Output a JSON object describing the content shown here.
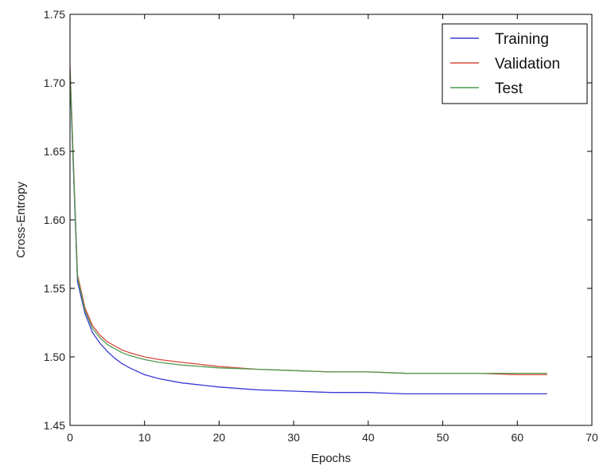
{
  "chart_data": {
    "type": "line",
    "title": "",
    "xlabel": "Epochs",
    "ylabel": "Cross-Entropy",
    "xlim": [
      0,
      70
    ],
    "ylim": [
      1.45,
      1.75
    ],
    "xticks": [
      0,
      10,
      20,
      30,
      40,
      50,
      60,
      70
    ],
    "yticks": [
      1.45,
      1.5,
      1.55,
      1.6,
      1.65,
      1.7,
      1.75
    ],
    "xtick_labels": [
      "0",
      "10",
      "20",
      "30",
      "40",
      "50",
      "60",
      "70"
    ],
    "ytick_labels": [
      "1.45",
      "1.50",
      "1.55",
      "1.60",
      "1.65",
      "1.70",
      "1.75"
    ],
    "grid": false,
    "legend": "top-right",
    "series": [
      {
        "name": "Training",
        "color": "#3b3bd6",
        "x": [
          0,
          1,
          2,
          3,
          4,
          5,
          6,
          7,
          8,
          10,
          12,
          15,
          20,
          25,
          30,
          35,
          40,
          45,
          50,
          55,
          60,
          64
        ],
        "y": [
          1.705,
          1.555,
          1.532,
          1.518,
          1.51,
          1.504,
          1.499,
          1.495,
          1.492,
          1.487,
          1.484,
          1.481,
          1.478,
          1.476,
          1.475,
          1.474,
          1.474,
          1.473,
          1.473,
          1.473,
          1.473,
          1.473
        ]
      },
      {
        "name": "Validation",
        "color": "#d84a3c",
        "x": [
          0,
          1,
          2,
          3,
          4,
          5,
          6,
          7,
          8,
          10,
          12,
          15,
          20,
          25,
          30,
          35,
          40,
          45,
          50,
          55,
          60,
          64
        ],
        "y": [
          1.712,
          1.56,
          1.536,
          1.523,
          1.516,
          1.511,
          1.508,
          1.505,
          1.503,
          1.5,
          1.498,
          1.496,
          1.493,
          1.491,
          1.49,
          1.489,
          1.489,
          1.488,
          1.488,
          1.488,
          1.487,
          1.487
        ]
      },
      {
        "name": "Test",
        "color": "#4f9a4f",
        "x": [
          0,
          1,
          2,
          3,
          4,
          5,
          6,
          7,
          8,
          10,
          12,
          15,
          20,
          25,
          30,
          35,
          40,
          45,
          50,
          55,
          60,
          64
        ],
        "y": [
          1.708,
          1.558,
          1.534,
          1.521,
          1.514,
          1.509,
          1.506,
          1.503,
          1.501,
          1.498,
          1.496,
          1.494,
          1.492,
          1.491,
          1.49,
          1.489,
          1.489,
          1.488,
          1.488,
          1.488,
          1.488,
          1.488
        ]
      }
    ]
  }
}
